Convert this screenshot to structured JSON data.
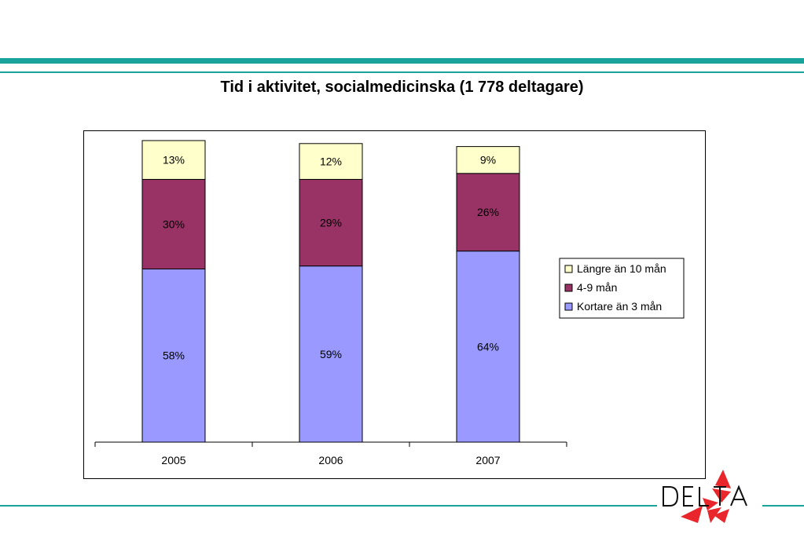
{
  "title": "Tid i aktivitet, socialmedicinska (1 778 deltagare)",
  "chart_data": {
    "type": "bar",
    "stacked": true,
    "categories": [
      "2005",
      "2006",
      "2007"
    ],
    "series": [
      {
        "name": "Kortare än 3 mån",
        "values": [
          58,
          59,
          64
        ],
        "color": "#9999ff"
      },
      {
        "name": "4-9 mån",
        "values": [
          30,
          29,
          26
        ],
        "color": "#993366"
      },
      {
        "name": "Längre än 10 mån",
        "values": [
          13,
          12,
          9
        ],
        "color": "#ffffcc"
      }
    ],
    "data_labels": [
      [
        "58%",
        "59%",
        "64%"
      ],
      [
        "30%",
        "29%",
        "26%"
      ],
      [
        "13%",
        "12%",
        "9%"
      ]
    ],
    "legend_order": [
      "Längre än 10 mån",
      "4-9 mån",
      "Kortare än 3 mån"
    ],
    "legend_position": "right",
    "ylim": [
      0,
      100
    ],
    "grid": false
  },
  "logo": {
    "text": "DELTA",
    "accent_color": "#e8262b"
  }
}
